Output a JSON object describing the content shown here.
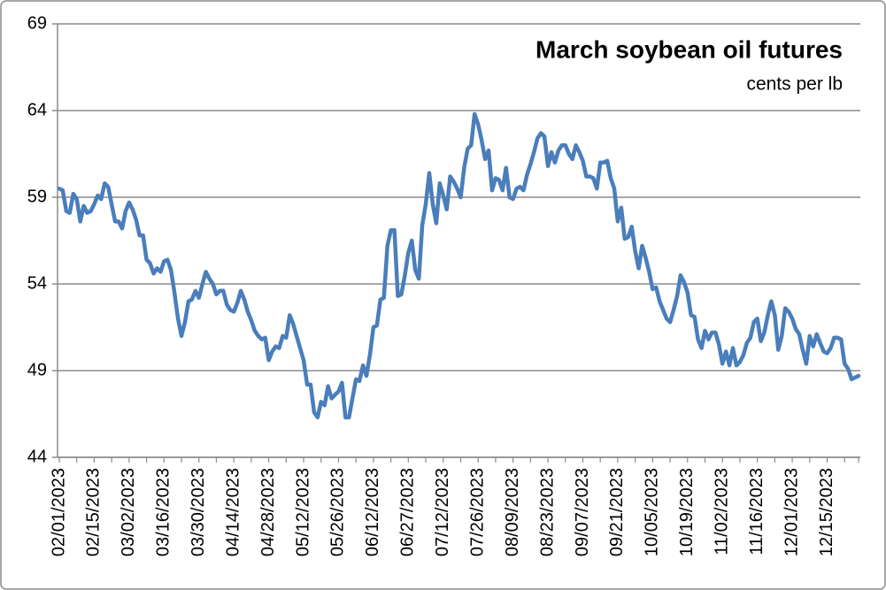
{
  "chart_data": {
    "type": "line",
    "title": "March soybean oil futures",
    "subtitle": "cents per lb",
    "categories": [
      "02/01/2023",
      null,
      null,
      null,
      null,
      null,
      null,
      null,
      null,
      null,
      "02/15/2023",
      null,
      null,
      null,
      null,
      null,
      null,
      null,
      null,
      null,
      "03/02/2023",
      null,
      null,
      null,
      null,
      null,
      null,
      null,
      null,
      null,
      "03/16/2023",
      null,
      null,
      null,
      null,
      null,
      null,
      null,
      null,
      null,
      "03/30/2023",
      null,
      null,
      null,
      null,
      null,
      null,
      null,
      null,
      null,
      "04/14/2023",
      null,
      null,
      null,
      null,
      null,
      null,
      null,
      null,
      null,
      "04/28/2023",
      null,
      null,
      null,
      null,
      null,
      null,
      null,
      null,
      null,
      "05/12/2023",
      null,
      null,
      null,
      null,
      null,
      null,
      null,
      null,
      null,
      "05/26/2023",
      null,
      null,
      null,
      null,
      null,
      null,
      null,
      null,
      null,
      "06/12/2023",
      null,
      null,
      null,
      null,
      null,
      null,
      null,
      null,
      null,
      "06/27/2023",
      null,
      null,
      null,
      null,
      null,
      null,
      null,
      null,
      null,
      "07/12/2023",
      null,
      null,
      null,
      null,
      null,
      null,
      null,
      null,
      null,
      "07/26/2023",
      null,
      null,
      null,
      null,
      null,
      null,
      null,
      null,
      null,
      "08/09/2023",
      null,
      null,
      null,
      null,
      null,
      null,
      null,
      null,
      null,
      "08/23/2023",
      null,
      null,
      null,
      null,
      null,
      null,
      null,
      null,
      null,
      "09/07/2023",
      null,
      null,
      null,
      null,
      null,
      null,
      null,
      null,
      null,
      "09/21/2023",
      null,
      null,
      null,
      null,
      null,
      null,
      null,
      null,
      null,
      "10/05/2023",
      null,
      null,
      null,
      null,
      null,
      null,
      null,
      null,
      null,
      "10/19/2023",
      null,
      null,
      null,
      null,
      null,
      null,
      null,
      null,
      null,
      "11/02/2023",
      null,
      null,
      null,
      null,
      null,
      null,
      null,
      null,
      null,
      "11/16/2023",
      null,
      null,
      null,
      null,
      null,
      null,
      null,
      null,
      null,
      "12/01/2023",
      null,
      null,
      null,
      null,
      null,
      null,
      null,
      null,
      null,
      "12/15/2023",
      null,
      null,
      null,
      null,
      null,
      null,
      null,
      null,
      null
    ],
    "values": [
      59.5,
      59.4,
      58.2,
      58.1,
      59.2,
      58.9,
      57.6,
      58.5,
      58.1,
      58.2,
      58.6,
      59.1,
      58.9,
      59.8,
      59.6,
      58.6,
      57.6,
      57.6,
      57.2,
      58.2,
      58.7,
      58.3,
      57.7,
      56.8,
      56.8,
      55.4,
      55.2,
      54.6,
      54.9,
      54.7,
      55.3,
      55.4,
      54.8,
      53.5,
      52.0,
      51.0,
      51.8,
      53.0,
      53.1,
      53.6,
      53.2,
      54.0,
      54.7,
      54.3,
      54.0,
      53.4,
      53.6,
      53.6,
      52.8,
      52.5,
      52.4,
      52.9,
      53.6,
      53.1,
      52.4,
      51.9,
      51.3,
      51.0,
      50.8,
      50.9,
      49.6,
      50.1,
      50.4,
      50.3,
      51.0,
      50.9,
      52.2,
      51.7,
      51.0,
      50.3,
      49.6,
      48.2,
      48.2,
      46.6,
      46.3,
      47.2,
      47.0,
      48.1,
      47.4,
      47.6,
      47.8,
      48.3,
      46.3,
      46.3,
      47.4,
      48.5,
      48.4,
      49.3,
      48.7,
      49.9,
      51.5,
      51.6,
      53.1,
      53.2,
      56.2,
      57.1,
      57.1,
      53.3,
      53.4,
      54.5,
      55.8,
      56.5,
      54.8,
      54.3,
      57.4,
      58.6,
      60.4,
      58.6,
      57.5,
      59.8,
      59.1,
      58.3,
      60.2,
      59.9,
      59.5,
      59.0,
      60.7,
      61.8,
      62.0,
      63.8,
      63.2,
      62.3,
      61.2,
      61.7,
      59.4,
      60.1,
      60.0,
      59.4,
      60.7,
      59.0,
      58.9,
      59.5,
      59.6,
      59.4,
      60.3,
      60.9,
      61.6,
      62.4,
      62.7,
      62.5,
      60.8,
      61.6,
      61.0,
      61.7,
      62.0,
      62.0,
      61.5,
      61.2,
      62.0,
      61.6,
      61.1,
      60.2,
      60.2,
      60.1,
      59.5,
      61.0,
      61.0,
      61.1,
      60.1,
      59.5,
      57.6,
      58.4,
      56.6,
      56.7,
      57.3,
      55.9,
      54.9,
      56.2,
      55.5,
      54.7,
      53.7,
      53.8,
      53.0,
      52.5,
      52.0,
      51.8,
      52.5,
      53.3,
      54.5,
      54.1,
      53.5,
      52.2,
      52.1,
      50.8,
      50.3,
      51.3,
      50.8,
      51.2,
      51.2,
      50.5,
      49.4,
      50.1,
      49.3,
      50.3,
      49.3,
      49.5,
      49.9,
      50.6,
      50.9,
      51.8,
      52.0,
      50.7,
      51.2,
      52.2,
      53.0,
      52.2,
      50.2,
      51.0,
      52.6,
      52.4,
      52.0,
      51.4,
      51.1,
      50.2,
      49.4,
      51.0,
      50.4,
      51.1,
      50.6,
      50.1,
      50.0,
      50.3,
      50.9,
      50.9,
      50.8,
      49.4,
      49.1,
      48.5,
      48.6,
      48.7
    ],
    "color": "#4a7ebb",
    "ylim": [
      44,
      69
    ],
    "yticks": [
      44,
      49,
      54,
      59,
      64,
      69
    ],
    "grid": true
  }
}
